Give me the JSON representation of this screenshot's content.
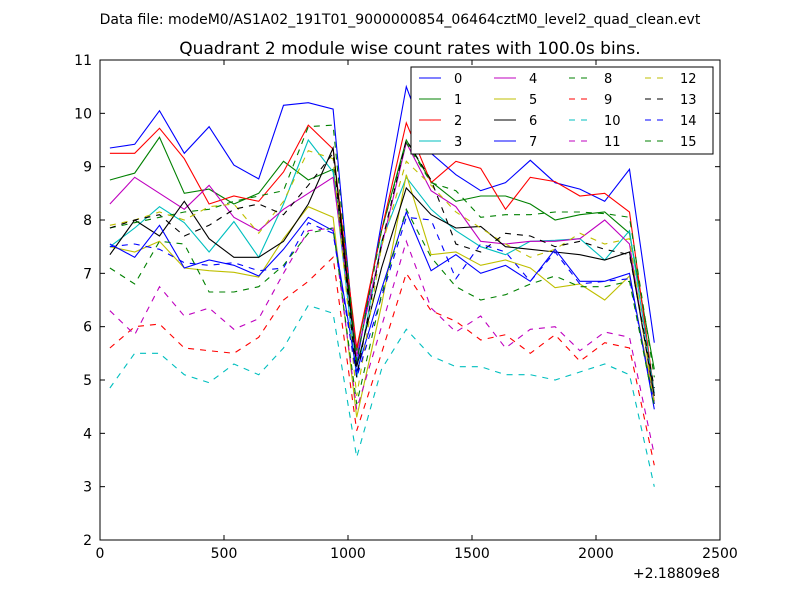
{
  "header": {
    "text": "Data file: modeM0/AS1A02_191T01_9000000854_06464cztM0_level2_quad_clean.evt"
  },
  "chart_data": {
    "type": "line",
    "title": "Quadrant 2 module wise count rates with 100.0s bins.",
    "xlabel": "",
    "ylabel": "",
    "x_offset_label": "+2.18809e8",
    "xlim": [
      0,
      2500
    ],
    "ylim": [
      2,
      11
    ],
    "xticks": [
      "0",
      "500",
      "1000",
      "1500",
      "2000",
      "2500"
    ],
    "yticks": [
      "2",
      "3",
      "4",
      "5",
      "6",
      "7",
      "8",
      "9",
      "10",
      "11"
    ],
    "legend_position": "top-right",
    "x": [
      40,
      140,
      240,
      340,
      440,
      540,
      640,
      740,
      840,
      940,
      1035,
      1135,
      1235,
      1335,
      1435,
      1535,
      1635,
      1735,
      1835,
      1935,
      2035,
      2135,
      2235
    ],
    "series": [
      {
        "name": "0",
        "color": "#0000ff",
        "dash": "solid",
        "values": [
          9.35,
          9.42,
          10.05,
          9.25,
          9.75,
          9.03,
          8.77,
          10.15,
          10.2,
          10.08,
          5.3,
          7.95,
          10.5,
          9.25,
          8.85,
          8.55,
          8.7,
          9.12,
          8.7,
          8.58,
          8.35,
          8.95,
          5.7
        ]
      },
      {
        "name": "1",
        "color": "#008000",
        "dash": "solid",
        "values": [
          8.75,
          8.88,
          9.55,
          8.5,
          8.58,
          8.3,
          8.5,
          9.1,
          8.75,
          8.95,
          5.55,
          7.8,
          9.5,
          8.72,
          8.35,
          8.45,
          8.45,
          8.3,
          8.0,
          8.1,
          8.15,
          7.75,
          5.2
        ]
      },
      {
        "name": "2",
        "color": "#ff0000",
        "dash": "solid",
        "values": [
          9.25,
          9.25,
          9.72,
          9.15,
          8.3,
          8.45,
          8.35,
          8.9,
          9.78,
          9.33,
          5.6,
          7.8,
          9.82,
          8.7,
          9.1,
          8.97,
          8.2,
          8.8,
          8.72,
          8.45,
          8.5,
          8.15,
          4.75
        ]
      },
      {
        "name": "3",
        "color": "#00bfbf",
        "dash": "solid",
        "values": [
          7.5,
          7.85,
          8.25,
          7.95,
          7.4,
          7.97,
          7.3,
          8.3,
          9.5,
          8.9,
          5.05,
          7.6,
          8.8,
          8.2,
          7.8,
          7.5,
          7.35,
          7.6,
          7.62,
          7.65,
          7.25,
          7.8,
          4.75
        ]
      },
      {
        "name": "4",
        "color": "#bf00bf",
        "dash": "solid",
        "values": [
          8.3,
          8.8,
          8.5,
          8.2,
          8.65,
          8.05,
          7.8,
          8.2,
          8.5,
          8.8,
          5.45,
          7.5,
          9.45,
          8.55,
          8.25,
          7.6,
          7.55,
          7.6,
          7.6,
          7.65,
          8.0,
          7.55,
          4.6
        ]
      },
      {
        "name": "5",
        "color": "#bfbf00",
        "dash": "solid",
        "values": [
          7.5,
          7.4,
          7.6,
          7.1,
          7.05,
          7.02,
          6.93,
          7.65,
          8.25,
          8.05,
          4.3,
          6.4,
          8.85,
          7.35,
          7.4,
          7.15,
          7.25,
          7.1,
          6.73,
          6.8,
          6.5,
          6.95,
          4.6
        ]
      },
      {
        "name": "6",
        "color": "#000000",
        "dash": "solid",
        "values": [
          7.35,
          8.0,
          7.7,
          8.35,
          7.65,
          7.3,
          7.3,
          7.6,
          8.3,
          9.35,
          5.25,
          7.1,
          8.6,
          8.1,
          7.85,
          7.88,
          7.5,
          7.45,
          7.4,
          7.35,
          7.25,
          7.4,
          4.7
        ]
      },
      {
        "name": "7",
        "color": "#0000ff",
        "dash": "solid",
        "values": [
          7.55,
          7.3,
          7.9,
          7.1,
          7.25,
          7.15,
          6.95,
          7.45,
          8.05,
          7.8,
          5.15,
          6.7,
          8.15,
          7.05,
          7.35,
          7.0,
          7.15,
          6.85,
          7.45,
          6.85,
          6.85,
          7.0,
          4.45
        ]
      },
      {
        "name": "8",
        "color": "#008000",
        "dash": "dashed",
        "values": [
          7.85,
          7.95,
          8.05,
          8.15,
          8.2,
          8.35,
          8.45,
          8.55,
          9.75,
          9.78,
          5.35,
          7.8,
          9.45,
          8.7,
          8.55,
          8.05,
          8.1,
          8.1,
          8.15,
          8.15,
          8.12,
          8.05,
          5.05
        ]
      },
      {
        "name": "9",
        "color": "#ff0000",
        "dash": "dashed",
        "values": [
          5.6,
          6.0,
          6.05,
          5.6,
          5.55,
          5.5,
          5.8,
          6.5,
          6.85,
          7.3,
          4.05,
          5.5,
          7.0,
          6.3,
          6.1,
          5.75,
          5.85,
          5.5,
          5.85,
          5.35,
          5.7,
          5.6,
          3.4
        ]
      },
      {
        "name": "10",
        "color": "#00bfbf",
        "dash": "dashed",
        "values": [
          4.85,
          5.5,
          5.5,
          5.1,
          4.95,
          5.3,
          5.1,
          5.6,
          6.4,
          6.25,
          3.55,
          5.2,
          5.95,
          5.45,
          5.25,
          5.25,
          5.1,
          5.1,
          5.0,
          5.15,
          5.3,
          5.1,
          3.0
        ]
      },
      {
        "name": "11",
        "color": "#bf00bf",
        "dash": "dashed",
        "values": [
          6.3,
          5.85,
          6.75,
          6.2,
          6.35,
          5.95,
          6.15,
          7.0,
          7.8,
          7.85,
          4.45,
          6.0,
          7.6,
          6.35,
          5.9,
          6.2,
          5.6,
          5.95,
          6.0,
          5.55,
          5.9,
          5.8,
          3.6
        ]
      },
      {
        "name": "12",
        "color": "#bfbf00",
        "dash": "dashed",
        "values": [
          7.9,
          8.0,
          8.15,
          8.0,
          8.25,
          8.3,
          7.75,
          8.35,
          9.3,
          9.15,
          4.7,
          7.5,
          9.1,
          8.65,
          8.15,
          7.85,
          7.55,
          7.3,
          7.45,
          7.75,
          7.55,
          7.65,
          4.55
        ]
      },
      {
        "name": "13",
        "color": "#000000",
        "dash": "dashed",
        "values": [
          7.85,
          8.0,
          8.1,
          7.7,
          7.9,
          8.2,
          8.3,
          8.1,
          8.65,
          9.25,
          5.05,
          7.55,
          9.5,
          8.75,
          7.55,
          7.4,
          7.75,
          7.7,
          7.5,
          7.6,
          7.45,
          7.35,
          4.85
        ]
      },
      {
        "name": "14",
        "color": "#0000ff",
        "dash": "dashed",
        "values": [
          7.5,
          7.55,
          7.45,
          7.2,
          7.15,
          7.2,
          7.05,
          7.1,
          7.95,
          7.75,
          5.05,
          6.55,
          8.05,
          8.0,
          6.9,
          7.55,
          7.4,
          6.85,
          7.4,
          6.8,
          6.85,
          6.9,
          4.55
        ]
      },
      {
        "name": "15",
        "color": "#008000",
        "dash": "dashed",
        "values": [
          7.1,
          6.8,
          7.6,
          7.55,
          6.65,
          6.65,
          6.75,
          7.15,
          7.75,
          7.85,
          4.55,
          6.6,
          8.2,
          7.3,
          6.75,
          6.5,
          6.6,
          6.8,
          6.95,
          6.75,
          6.75,
          6.85,
          4.5
        ]
      }
    ]
  }
}
